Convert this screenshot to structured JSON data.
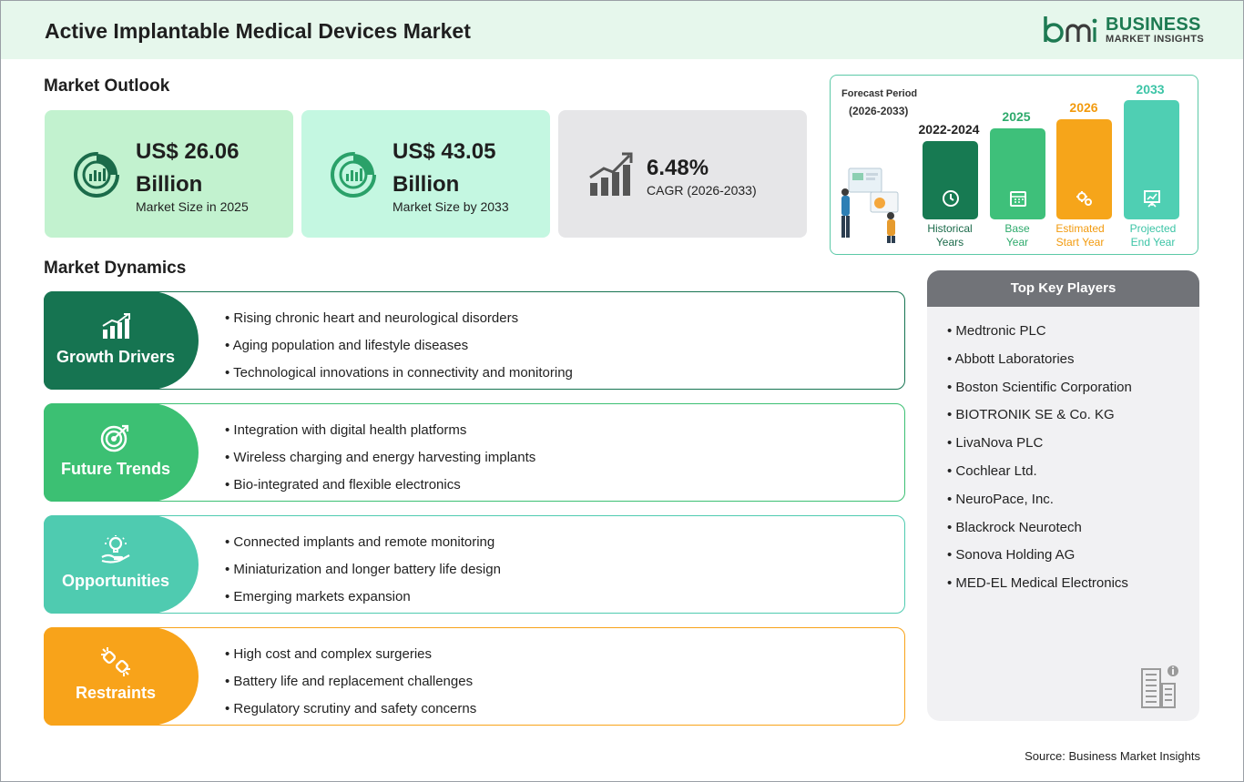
{
  "header": {
    "title": "Active Implantable Medical Devices Market"
  },
  "logo": {
    "line1": "BUSINESS",
    "line2": "MARKET INSIGHTS",
    "mark": "bmi"
  },
  "outlook": {
    "title": "Market Outlook",
    "cards": [
      {
        "value": "US$ 26.06 Billion",
        "label": "Market Size in 2025",
        "icon": "pie-chart-icon",
        "color": "#c2f2cf"
      },
      {
        "value": "US$ 43.05 Billion",
        "label": "Market Size by 2033",
        "icon": "pie-chart-icon",
        "color": "#c4f7e1"
      },
      {
        "value": "6.48%",
        "label": "CAGR (2026-2033)",
        "icon": "growth-chart-icon",
        "color": "#e6e6e8"
      }
    ]
  },
  "forecast": {
    "title": "Forecast Period",
    "subtitle": "(2026-2033)",
    "bars": [
      {
        "year": "2022-2024",
        "caption1": "Historical",
        "caption2": "Years",
        "color": "#177a52",
        "text_color": "#1b6a4a",
        "icon": "history-icon"
      },
      {
        "year": "2025",
        "caption1": "Base",
        "caption2": "Year",
        "color": "#3ec07a",
        "text_color": "#2eaa6c",
        "icon": "calendar-icon"
      },
      {
        "year": "2026",
        "caption1": "Estimated",
        "caption2": "Start Year",
        "color": "#f6a51a",
        "text_color": "#f29a0d",
        "icon": "gears-icon"
      },
      {
        "year": "2033",
        "caption1": "Projected",
        "caption2": "End Year",
        "color": "#4fcfb3",
        "text_color": "#3cc4a6",
        "icon": "presentation-icon"
      }
    ]
  },
  "dynamics": {
    "title": "Market Dynamics",
    "items": [
      {
        "label": "Growth Drivers",
        "color": "#167451",
        "icon": "growth-bars-icon",
        "points": [
          "Rising chronic heart and neurological disorders",
          "Aging population and lifestyle diseases",
          "Technological innovations in connectivity and monitoring"
        ]
      },
      {
        "label": "Future Trends",
        "color": "#3cc073",
        "icon": "target-icon",
        "points": [
          "Integration with digital health platforms",
          "Wireless charging and energy harvesting implants",
          "Bio-integrated and flexible electronics"
        ]
      },
      {
        "label": "Opportunities",
        "color": "#4fcbb0",
        "icon": "lightbulb-hand-icon",
        "points": [
          "Connected implants and remote monitoring",
          "Miniaturization and longer battery life design",
          "Emerging markets expansion"
        ]
      },
      {
        "label": "Restraints",
        "color": "#f8a31a",
        "icon": "broken-link-icon",
        "points": [
          "High cost and complex surgeries",
          "Battery life and replacement challenges",
          "Regulatory scrutiny and safety concerns"
        ]
      }
    ]
  },
  "players": {
    "title": "Top Key Players",
    "items": [
      "Medtronic PLC",
      "Abbott Laboratories",
      "Boston Scientific Corporation",
      "BIOTRONIK SE & Co. KG",
      "LivaNova PLC",
      "Cochlear Ltd.",
      "NeuroPace, Inc.",
      "Blackrock Neurotech",
      "Sonova Holding AG",
      "MED-EL Medical Electronics"
    ]
  },
  "source": "Source: Business Market Insights"
}
